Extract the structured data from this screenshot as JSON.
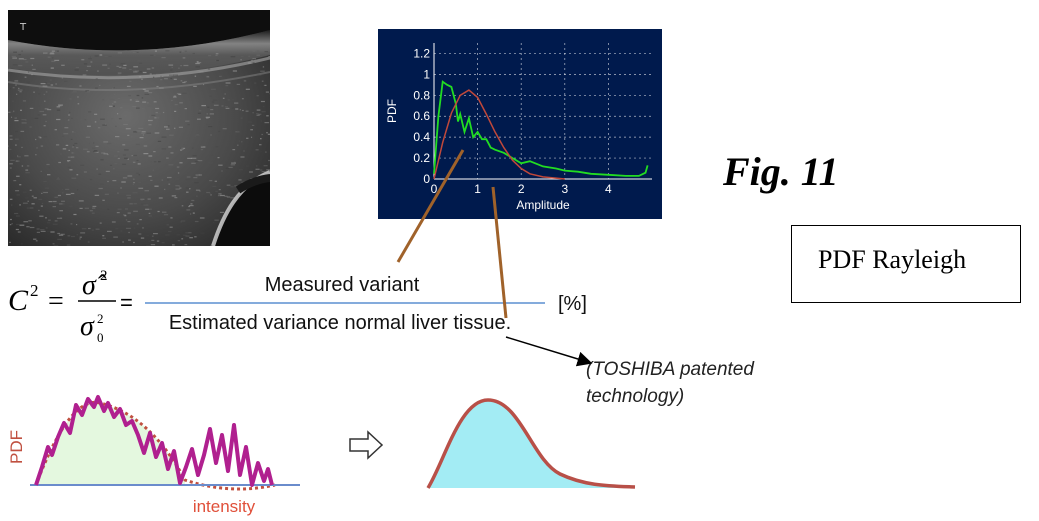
{
  "figure": {
    "fig_label": "Fig. 11",
    "rayleigh_box_label": "PDF Rayleigh",
    "patent_note_line1": "(TOSHIBA patented",
    "patent_note_line2": "technology)"
  },
  "ultrasound_image": {
    "corner_mark": "T"
  },
  "formula": {
    "lhs": "C",
    "lhs_exponent": "2",
    "numerator_symbol": "σ̂",
    "numerator_exponent": "2",
    "denominator_symbol": "σ",
    "denominator_subscript": "0",
    "denominator_exponent": "2",
    "equals": "=",
    "fraction_numerator": "Measured variant",
    "fraction_denominator": "Estimated variance normal liver tissue.",
    "unit": "[%]"
  },
  "bottom_diagram": {
    "y_label": "PDF",
    "x_label": "intensity",
    "colors": {
      "jagged_line": "#b0208f",
      "dotted_fit": "#c05040",
      "fill_left": "#e4f8df",
      "fill_right": "#a3ecf4",
      "curve_right": "#b85048",
      "axis": "#6a8ccc"
    }
  },
  "chart_data": {
    "type": "line",
    "xlabel": "Amplitude",
    "ylabel": "PDF",
    "xlim": [
      0,
      5
    ],
    "ylim": [
      0,
      1.3
    ],
    "x_ticks": [
      "0",
      "1",
      "2",
      "3",
      "4"
    ],
    "y_ticks": [
      "0",
      "0.2",
      "0.4",
      "0.6",
      "0.8",
      "1",
      "1.2"
    ],
    "grid": true,
    "background": "#001a4d",
    "series": [
      {
        "color": "#22dd22",
        "x": [
          0,
          0.1,
          0.2,
          0.3,
          0.4,
          0.5,
          0.55,
          0.6,
          0.7,
          0.8,
          0.9,
          1.0,
          1.1,
          1.2,
          1.3,
          1.4,
          1.6,
          1.8,
          2.0,
          2.2,
          2.5,
          2.8,
          3.0,
          3.3,
          3.6,
          4.0,
          4.4,
          4.7,
          4.85,
          4.9
        ],
        "y": [
          0.05,
          0.6,
          0.93,
          0.9,
          0.88,
          0.72,
          0.55,
          0.62,
          0.45,
          0.58,
          0.4,
          0.45,
          0.38,
          0.38,
          0.3,
          0.28,
          0.25,
          0.2,
          0.15,
          0.17,
          0.12,
          0.1,
          0.08,
          0.07,
          0.05,
          0.04,
          0.03,
          0.03,
          0.06,
          0.13
        ]
      },
      {
        "color": "#c0483a",
        "x": [
          0,
          0.2,
          0.4,
          0.6,
          0.8,
          1.0,
          1.2,
          1.4,
          1.6,
          1.8,
          2.0,
          2.2,
          2.5,
          3.0
        ],
        "y": [
          0,
          0.35,
          0.63,
          0.8,
          0.85,
          0.78,
          0.62,
          0.45,
          0.3,
          0.18,
          0.1,
          0.05,
          0.02,
          0
        ]
      }
    ]
  }
}
